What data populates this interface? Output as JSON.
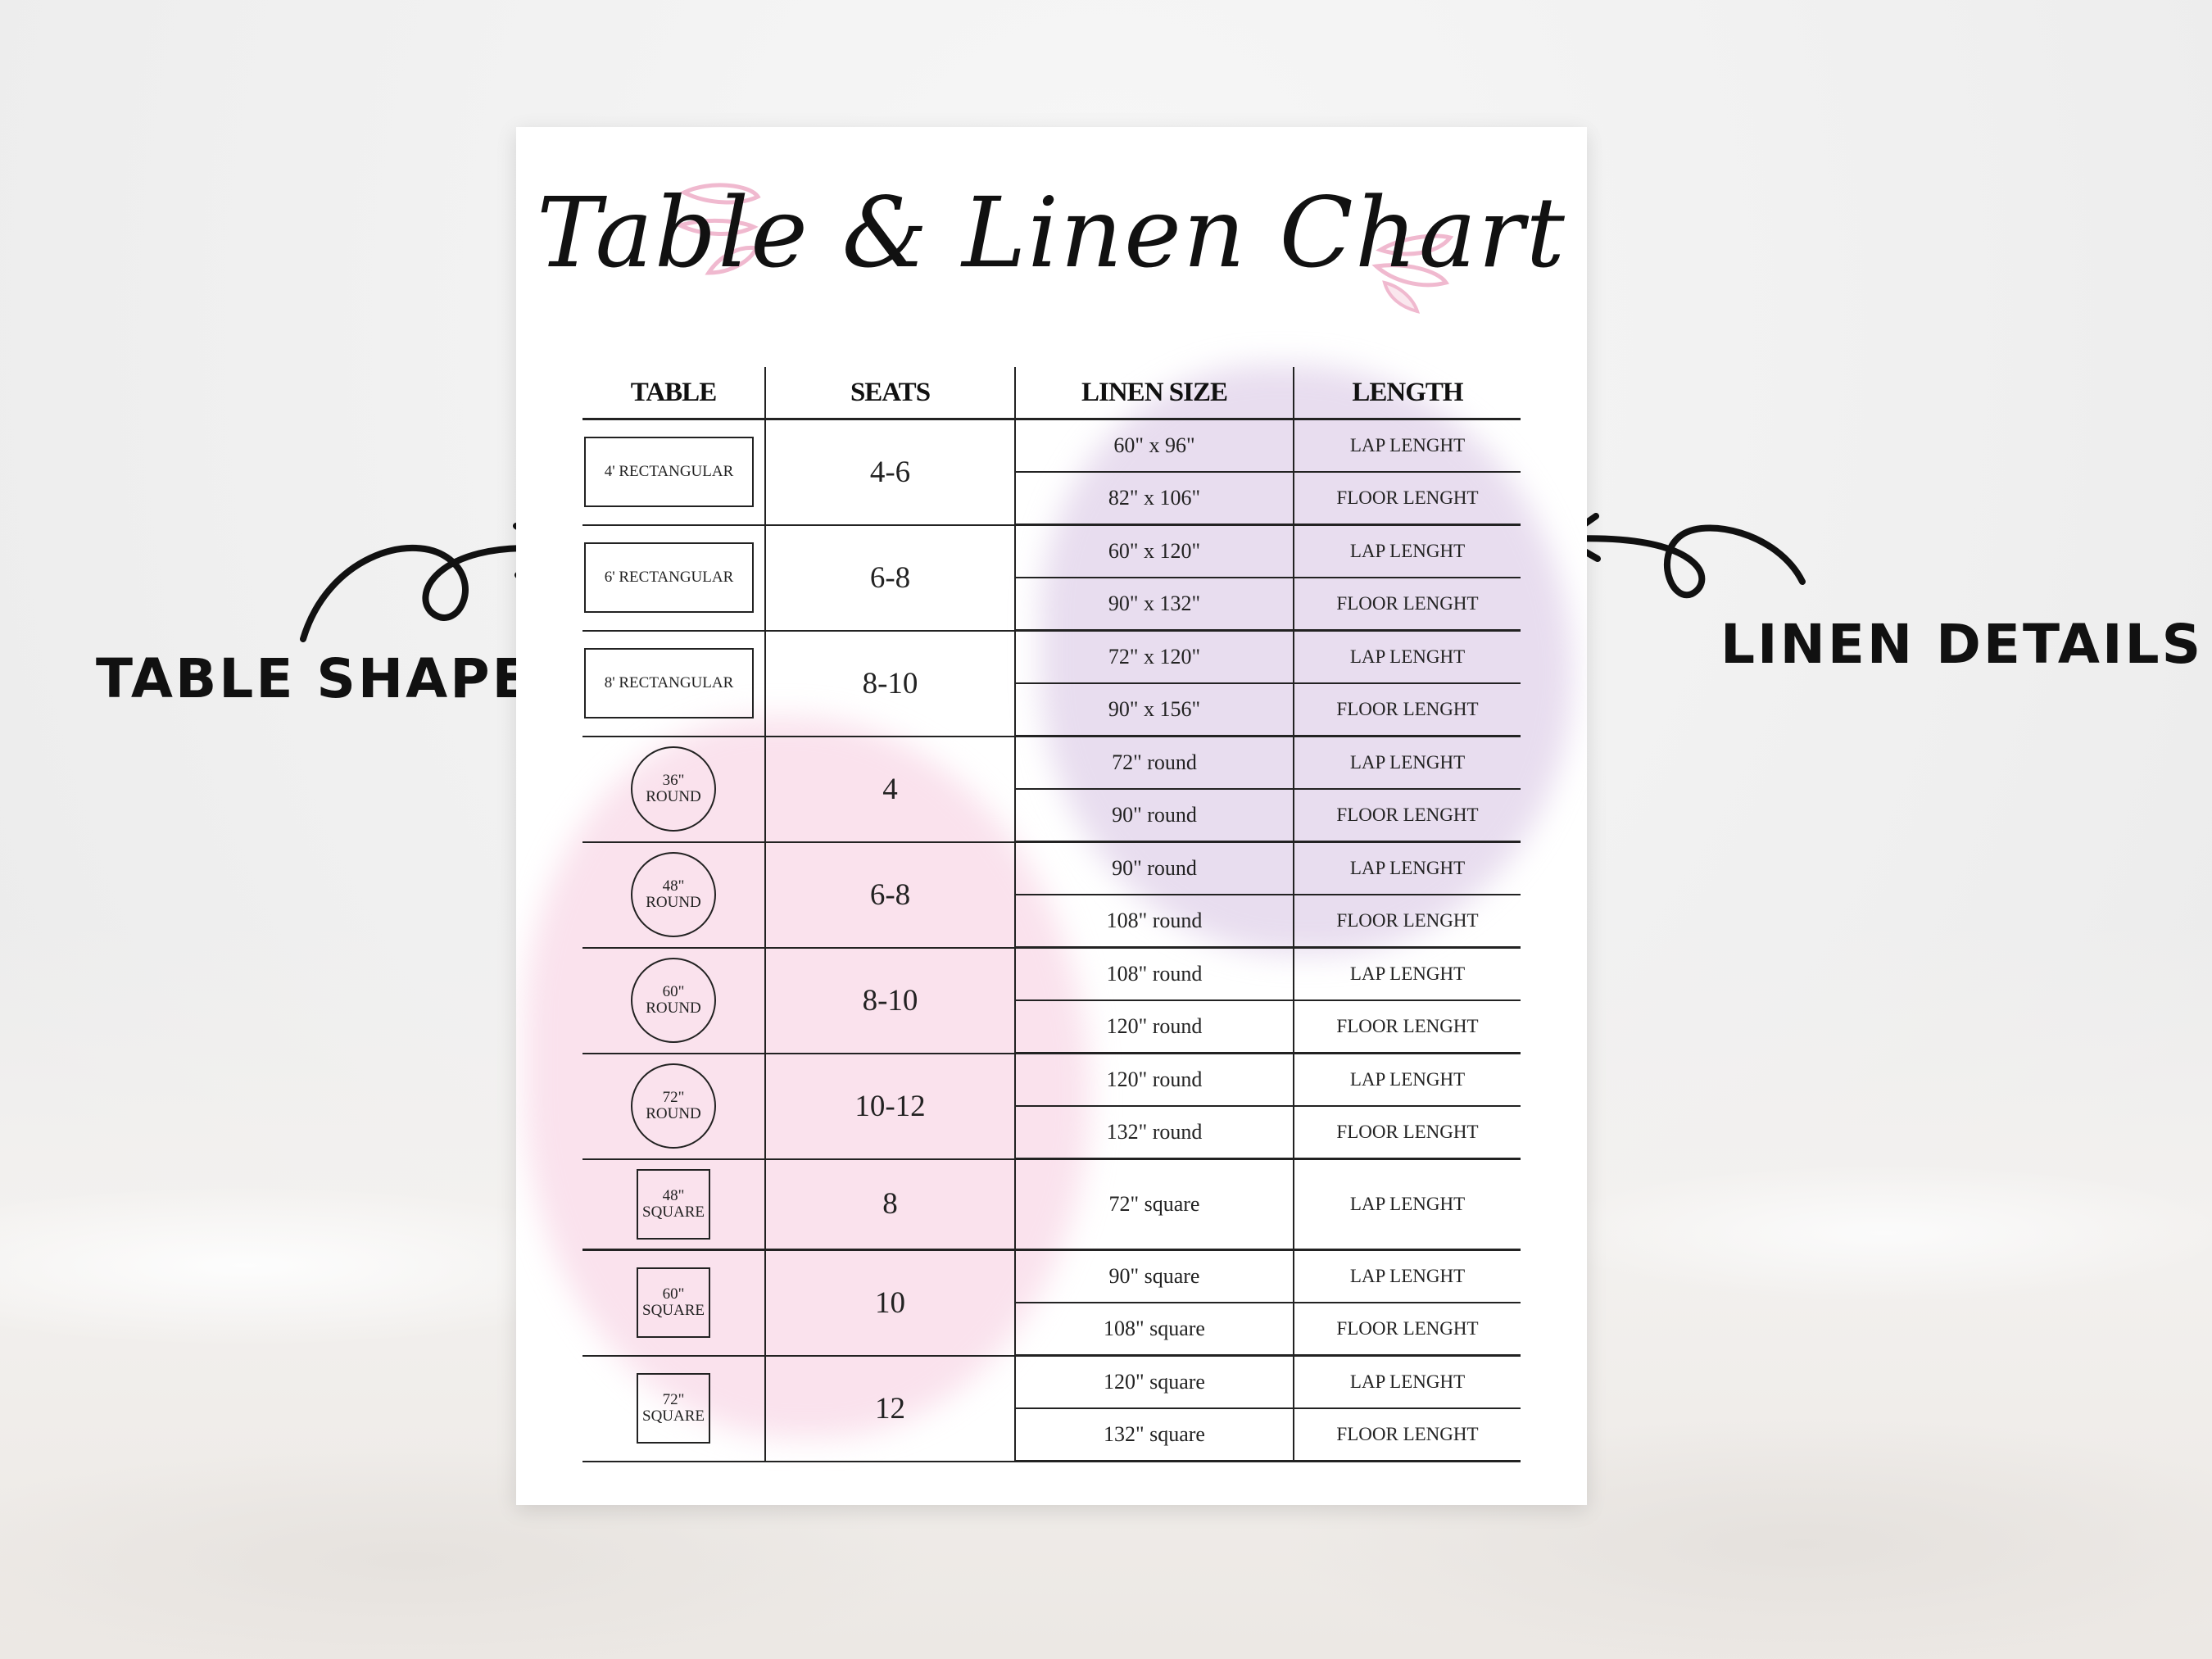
{
  "title": "Table & Linen Chart",
  "annotations": {
    "left": "TABLE SHAPE",
    "right": "LINEN DETAILS"
  },
  "colors": {
    "accent_pink": "#f0b9cf",
    "watercolor_purple": "#cdb4dc",
    "watercolor_pink": "#f5bed7"
  },
  "table": {
    "headers": [
      "TABLE",
      "SEATS",
      "LINEN SIZE",
      "LENGTH"
    ],
    "groups": [
      {
        "shape": "rect",
        "label": "4' RECTANGULAR",
        "seats": "4-6",
        "rows": [
          {
            "linen": "60\" x 96\"",
            "length": "LAP LENGHT"
          },
          {
            "linen": "82\" x 106\"",
            "length": "FLOOR LENGHT"
          }
        ]
      },
      {
        "shape": "rect",
        "label": "6' RECTANGULAR",
        "seats": "6-8",
        "rows": [
          {
            "linen": "60\" x 120\"",
            "length": "LAP LENGHT"
          },
          {
            "linen": "90\" x 132\"",
            "length": "FLOOR LENGHT"
          }
        ]
      },
      {
        "shape": "rect",
        "label": "8' RECTANGULAR",
        "seats": "8-10",
        "rows": [
          {
            "linen": "72\" x 120\"",
            "length": "LAP LENGHT"
          },
          {
            "linen": "90\" x 156\"",
            "length": "FLOOR LENGHT"
          }
        ]
      },
      {
        "shape": "circle",
        "label": "36\" ROUND",
        "seats": "4",
        "rows": [
          {
            "linen": "72\" round",
            "length": "LAP LENGHT"
          },
          {
            "linen": "90\" round",
            "length": "FLOOR LENGHT"
          }
        ]
      },
      {
        "shape": "circle",
        "label": "48\" ROUND",
        "seats": "6-8",
        "rows": [
          {
            "linen": "90\" round",
            "length": "LAP LENGHT"
          },
          {
            "linen": "108\" round",
            "length": "FLOOR LENGHT"
          }
        ]
      },
      {
        "shape": "circle",
        "label": "60\" ROUND",
        "seats": "8-10",
        "rows": [
          {
            "linen": "108\" round",
            "length": "LAP LENGHT"
          },
          {
            "linen": "120\" round",
            "length": "FLOOR LENGHT"
          }
        ]
      },
      {
        "shape": "circle",
        "label": "72\" ROUND",
        "seats": "10-12",
        "rows": [
          {
            "linen": "120\" round",
            "length": "LAP LENGHT"
          },
          {
            "linen": "132\" round",
            "length": "FLOOR LENGHT"
          }
        ]
      },
      {
        "shape": "square",
        "label": "48\" SQUARE",
        "seats": "8",
        "rows": [
          {
            "linen": "72\" square",
            "length": "LAP LENGHT"
          }
        ]
      },
      {
        "shape": "square",
        "label": "60\" SQUARE",
        "seats": "10",
        "rows": [
          {
            "linen": "90\" square",
            "length": "LAP LENGHT"
          },
          {
            "linen": "108\" square",
            "length": "FLOOR LENGHT"
          }
        ]
      },
      {
        "shape": "square",
        "label": "72\" SQUARE",
        "seats": "12",
        "rows": [
          {
            "linen": "120\" square",
            "length": "LAP LENGHT"
          },
          {
            "linen": "132\" square",
            "length": "FLOOR LENGHT"
          }
        ]
      }
    ]
  }
}
